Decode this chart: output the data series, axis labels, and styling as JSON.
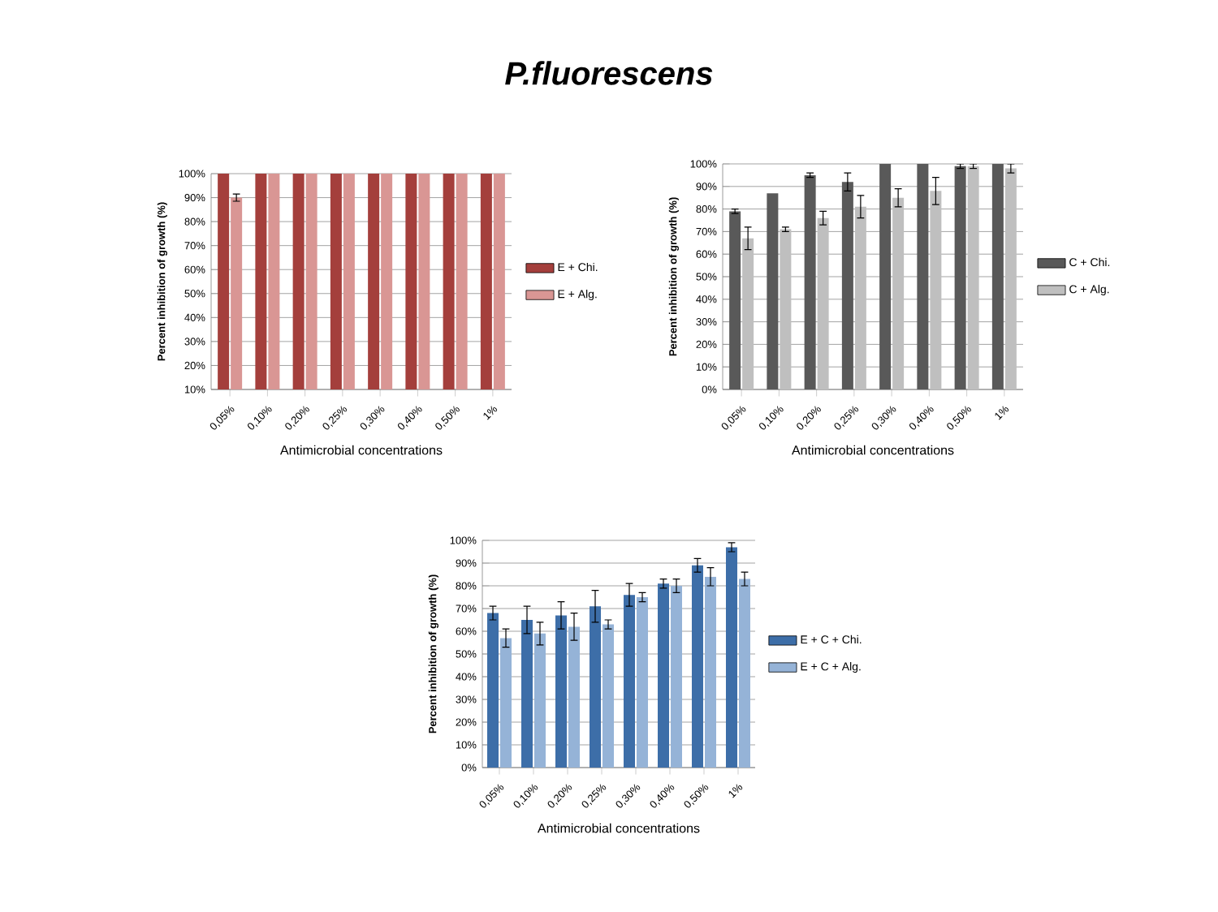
{
  "chart_data": [
    {
      "type": "bar",
      "title": "P.fluorescens",
      "xlabel": "Antimicrobial concentrations",
      "ylabel": "Percent inhibition of growth (%)",
      "categories": [
        "0,05%",
        "0,10%",
        "0,20%",
        "0,25%",
        "0,30%",
        "0,40%",
        "0,50%",
        "1%"
      ],
      "series": [
        {
          "name": "E + Chi.",
          "color": "#a43f3c",
          "values": [
            100,
            100,
            100,
            100,
            100,
            100,
            100,
            100
          ]
        },
        {
          "name": "E + Alg.",
          "color": "#d99694",
          "values": [
            90,
            100,
            100,
            100,
            100,
            100,
            100,
            100
          ],
          "errors": [
            1.5,
            null,
            null,
            null,
            null,
            null,
            null,
            null
          ]
        }
      ],
      "ylim": [
        10,
        100
      ],
      "yticks": [
        {
          "value": 10,
          "label": "10%"
        },
        {
          "value": 20,
          "label": "20%"
        },
        {
          "value": 30,
          "label": "30%"
        },
        {
          "value": 40,
          "label": "40%"
        },
        {
          "value": 50,
          "label": "50%"
        },
        {
          "value": 60,
          "label": "60%"
        },
        {
          "value": 70,
          "label": "70%"
        },
        {
          "value": 80,
          "label": "80%"
        },
        {
          "value": 90,
          "label": "90%"
        },
        {
          "value": 100,
          "label": "100%"
        }
      ],
      "grid": "y",
      "legend": "right"
    },
    {
      "type": "bar",
      "xlabel": "Antimicrobial concentrations",
      "ylabel": "Percent inhibition of growth (%)",
      "categories": [
        "0,05%",
        "0,10%",
        "0,20%",
        "0,25%",
        "0,30%",
        "0,40%",
        "0,50%",
        "1%"
      ],
      "series": [
        {
          "name": "C + Chi.",
          "color": "#595959",
          "values": [
            79,
            87,
            95,
            92,
            100,
            100,
            99,
            100
          ],
          "errors": [
            1,
            null,
            1,
            4,
            null,
            null,
            1,
            null
          ]
        },
        {
          "name": "C + Alg.",
          "color": "#bfbfbf",
          "values": [
            67,
            71,
            76,
            81,
            85,
            88,
            99,
            98
          ],
          "errors": [
            5,
            1,
            3,
            5,
            4,
            6,
            1,
            2
          ]
        }
      ],
      "ylim": [
        0,
        100
      ],
      "yticks": [
        {
          "value": 0,
          "label": "0%"
        },
        {
          "value": 10,
          "label": "10%"
        },
        {
          "value": 20,
          "label": "20%"
        },
        {
          "value": 30,
          "label": "30%"
        },
        {
          "value": 40,
          "label": "40%"
        },
        {
          "value": 50,
          "label": "50%"
        },
        {
          "value": 60,
          "label": "60%"
        },
        {
          "value": 70,
          "label": "70%"
        },
        {
          "value": 80,
          "label": "80%"
        },
        {
          "value": 90,
          "label": "90%"
        },
        {
          "value": 100,
          "label": "100%"
        }
      ],
      "grid": "y",
      "legend": "right"
    },
    {
      "type": "bar",
      "xlabel": "Antimicrobial concentrations",
      "ylabel": "Percent inhibition of growth (%)",
      "categories": [
        "0,05%",
        "0,10%",
        "0,20%",
        "0,25%",
        "0,30%",
        "0,40%",
        "0,50%",
        "1%"
      ],
      "series": [
        {
          "name": "E + C + Chi.",
          "color": "#3d6ea8",
          "values": [
            68,
            65,
            67,
            71,
            76,
            81,
            89,
            97
          ],
          "errors": [
            3,
            6,
            6,
            7,
            5,
            2,
            3,
            2
          ]
        },
        {
          "name": "E + C + Alg.",
          "color": "#95b3d7",
          "values": [
            57,
            59,
            62,
            63,
            75,
            80,
            84,
            83
          ],
          "errors": [
            4,
            5,
            6,
            2,
            2,
            3,
            4,
            3
          ]
        }
      ],
      "ylim": [
        0,
        100
      ],
      "yticks": [
        {
          "value": 0,
          "label": "0%"
        },
        {
          "value": 10,
          "label": "10%"
        },
        {
          "value": 20,
          "label": "20%"
        },
        {
          "value": 30,
          "label": "30%"
        },
        {
          "value": 40,
          "label": "40%"
        },
        {
          "value": 50,
          "label": "50%"
        },
        {
          "value": 60,
          "label": "60%"
        },
        {
          "value": 70,
          "label": "70%"
        },
        {
          "value": 80,
          "label": "80%"
        },
        {
          "value": 90,
          "label": "90%"
        },
        {
          "value": 100,
          "label": "100%"
        }
      ],
      "grid": "y",
      "legend": "right"
    }
  ]
}
